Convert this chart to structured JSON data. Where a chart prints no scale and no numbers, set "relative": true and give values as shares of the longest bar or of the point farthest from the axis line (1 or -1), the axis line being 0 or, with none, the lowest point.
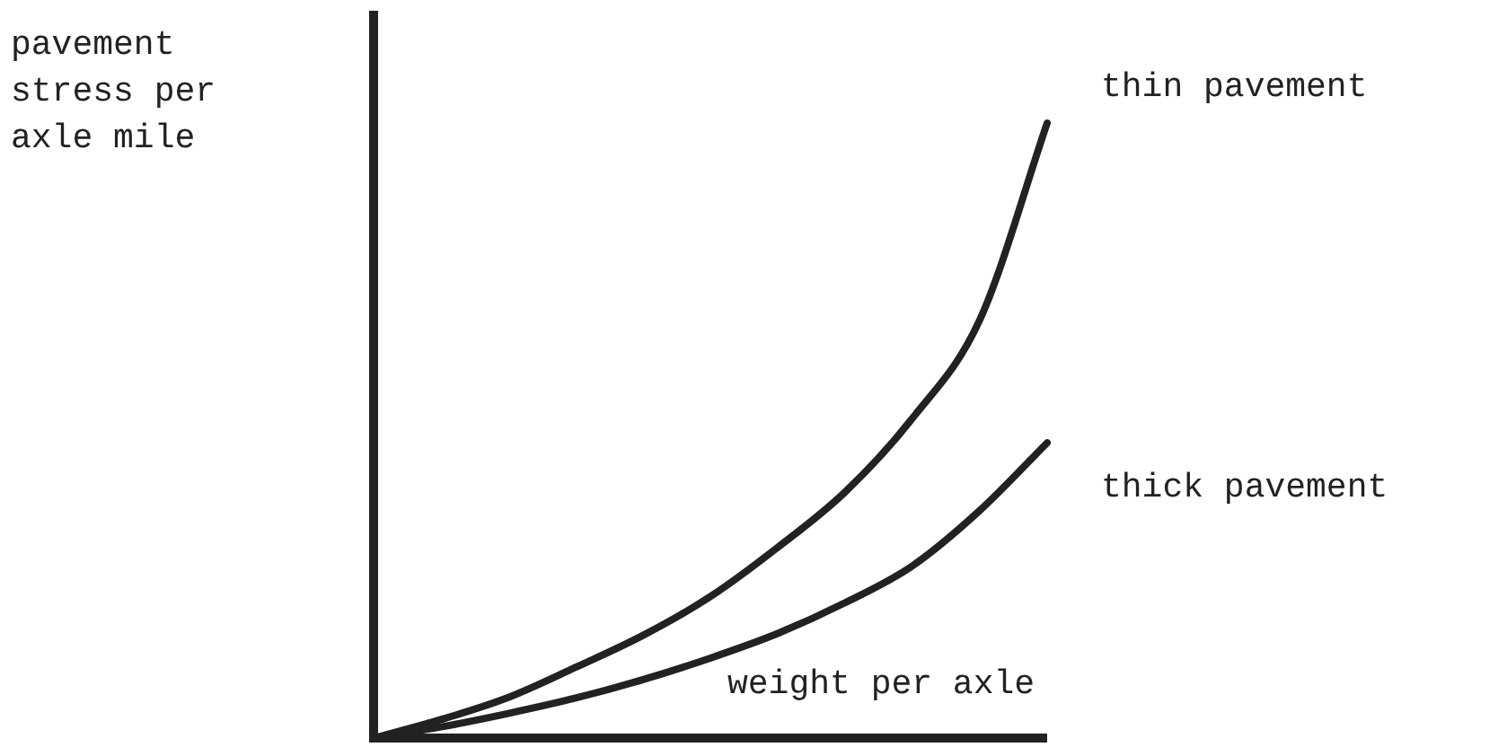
{
  "chart_data": {
    "type": "line",
    "relative": true,
    "xlabel": "weight per axle",
    "ylabel": "pavement stress per axle mile",
    "categories": [
      null,
      null,
      null,
      null,
      null,
      null,
      null,
      null,
      null,
      null,
      null
    ],
    "legend": false,
    "grid": false,
    "marker": "none",
    "line_style": "solid",
    "series": [
      {
        "name": "thin pavement",
        "color": "#222222",
        "values": [
          0,
          0.03,
          0.066,
          0.115,
          0.167,
          0.23,
          0.31,
          0.4,
          0.52,
          0.68,
          1
        ]
      },
      {
        "name": "thick pavement",
        "color": "#222222",
        "values": [
          0,
          0.018,
          0.04,
          0.065,
          0.095,
          0.13,
          0.17,
          0.22,
          0.28,
          0.37,
          0.48
        ]
      }
    ]
  }
}
